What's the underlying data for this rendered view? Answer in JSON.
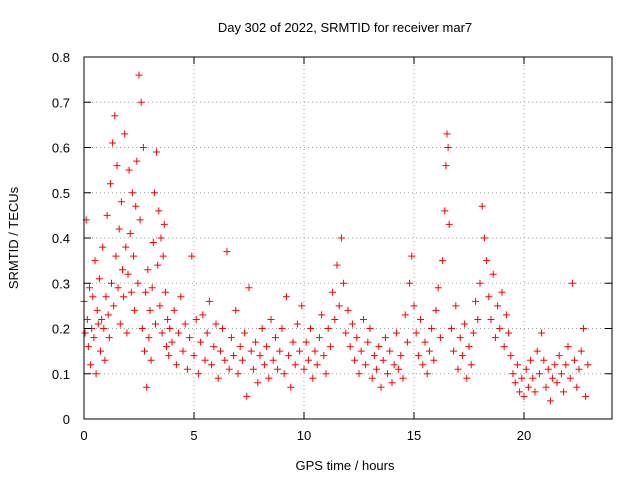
{
  "colors": {
    "series": "#ff0000",
    "frame": "#000000",
    "grid": "#a0a0a0",
    "background": "#ffffff"
  },
  "chart_data": {
    "type": "scatter",
    "title": "Day 302 of 2022, SRMTID for receiver mar7",
    "xlabel": "GPS time / hours",
    "ylabel": "SRMTID / TECUs",
    "xlim": [
      0,
      24
    ],
    "ylim": [
      0,
      0.8
    ],
    "xticks": [
      0,
      5,
      10,
      15,
      20
    ],
    "yticks": [
      0,
      0.1,
      0.2,
      0.3,
      0.4,
      0.5,
      0.6,
      0.7,
      0.8
    ],
    "grid": true,
    "marker": "plus",
    "series": [
      {
        "name": "SRMTID",
        "points": [
          [
            0.0,
            0.26
          ],
          [
            0.05,
            0.19
          ],
          [
            0.1,
            0.44
          ],
          [
            0.15,
            0.22
          ],
          [
            0.2,
            0.16
          ],
          [
            0.25,
            0.29
          ],
          [
            0.3,
            0.12
          ],
          [
            0.35,
            0.2
          ],
          [
            0.4,
            0.27
          ],
          [
            0.45,
            0.18
          ],
          [
            0.5,
            0.35
          ],
          [
            0.55,
            0.1
          ],
          [
            0.6,
            0.24
          ],
          [
            0.65,
            0.21
          ],
          [
            0.7,
            0.31
          ],
          [
            0.75,
            0.15
          ],
          [
            0.8,
            0.22
          ],
          [
            0.85,
            0.38
          ],
          [
            0.9,
            0.2
          ],
          [
            0.95,
            0.13
          ],
          [
            1.0,
            0.27
          ],
          [
            1.05,
            0.45
          ],
          [
            1.1,
            0.23
          ],
          [
            1.15,
            0.18
          ],
          [
            1.2,
            0.52
          ],
          [
            1.25,
            0.3
          ],
          [
            1.3,
            0.61
          ],
          [
            1.35,
            0.25
          ],
          [
            1.4,
            0.67
          ],
          [
            1.45,
            0.36
          ],
          [
            1.5,
            0.56
          ],
          [
            1.55,
            0.29
          ],
          [
            1.6,
            0.42
          ],
          [
            1.65,
            0.21
          ],
          [
            1.7,
            0.48
          ],
          [
            1.75,
            0.33
          ],
          [
            1.8,
            0.27
          ],
          [
            1.85,
            0.63
          ],
          [
            1.9,
            0.38
          ],
          [
            1.95,
            0.19
          ],
          [
            2.0,
            0.32
          ],
          [
            2.05,
            0.55
          ],
          [
            2.1,
            0.41
          ],
          [
            2.15,
            0.28
          ],
          [
            2.2,
            0.5
          ],
          [
            2.25,
            0.36
          ],
          [
            2.3,
            0.24
          ],
          [
            2.35,
            0.47
          ],
          [
            2.4,
            0.57
          ],
          [
            2.45,
            0.3
          ],
          [
            2.5,
            0.76
          ],
          [
            2.55,
            0.44
          ],
          [
            2.6,
            0.7
          ],
          [
            2.65,
            0.2
          ],
          [
            2.7,
            0.6
          ],
          [
            2.75,
            0.15
          ],
          [
            2.8,
            0.28
          ],
          [
            2.85,
            0.07
          ],
          [
            2.9,
            0.33
          ],
          [
            2.95,
            0.18
          ],
          [
            3.0,
            0.24
          ],
          [
            3.05,
            0.13
          ],
          [
            3.1,
            0.29
          ],
          [
            3.15,
            0.39
          ],
          [
            3.2,
            0.5
          ],
          [
            3.25,
            0.21
          ],
          [
            3.3,
            0.59
          ],
          [
            3.35,
            0.34
          ],
          [
            3.4,
            0.46
          ],
          [
            3.45,
            0.25
          ],
          [
            3.5,
            0.4
          ],
          [
            3.55,
            0.19
          ],
          [
            3.6,
            0.36
          ],
          [
            3.65,
            0.43
          ],
          [
            3.7,
            0.28
          ],
          [
            3.75,
            0.16
          ],
          [
            3.8,
            0.22
          ],
          [
            3.85,
            0.14
          ],
          [
            3.9,
            0.2
          ],
          [
            4.0,
            0.17
          ],
          [
            4.1,
            0.24
          ],
          [
            4.2,
            0.12
          ],
          [
            4.3,
            0.19
          ],
          [
            4.4,
            0.27
          ],
          [
            4.5,
            0.15
          ],
          [
            4.6,
            0.21
          ],
          [
            4.7,
            0.11
          ],
          [
            4.8,
            0.18
          ],
          [
            4.9,
            0.36
          ],
          [
            5.0,
            0.14
          ],
          [
            5.1,
            0.22
          ],
          [
            5.2,
            0.1
          ],
          [
            5.3,
            0.17
          ],
          [
            5.4,
            0.23
          ],
          [
            5.5,
            0.13
          ],
          [
            5.6,
            0.19
          ],
          [
            5.7,
            0.26
          ],
          [
            5.8,
            0.12
          ],
          [
            5.9,
            0.16
          ],
          [
            6.0,
            0.21
          ],
          [
            6.1,
            0.09
          ],
          [
            6.2,
            0.15
          ],
          [
            6.3,
            0.2
          ],
          [
            6.4,
            0.13
          ],
          [
            6.5,
            0.37
          ],
          [
            6.6,
            0.11
          ],
          [
            6.7,
            0.18
          ],
          [
            6.8,
            0.14
          ],
          [
            6.9,
            0.24
          ],
          [
            7.0,
            0.1
          ],
          [
            7.1,
            0.16
          ],
          [
            7.2,
            0.13
          ],
          [
            7.3,
            0.19
          ],
          [
            7.4,
            0.05
          ],
          [
            7.5,
            0.29
          ],
          [
            7.6,
            0.15
          ],
          [
            7.7,
            0.11
          ],
          [
            7.8,
            0.17
          ],
          [
            7.9,
            0.08
          ],
          [
            8.0,
            0.14
          ],
          [
            8.1,
            0.2
          ],
          [
            8.2,
            0.12
          ],
          [
            8.3,
            0.16
          ],
          [
            8.4,
            0.09
          ],
          [
            8.5,
            0.22
          ],
          [
            8.6,
            0.13
          ],
          [
            8.7,
            0.18
          ],
          [
            8.8,
            0.11
          ],
          [
            8.9,
            0.15
          ],
          [
            9.0,
            0.2
          ],
          [
            9.1,
            0.1
          ],
          [
            9.2,
            0.27
          ],
          [
            9.3,
            0.14
          ],
          [
            9.4,
            0.07
          ],
          [
            9.5,
            0.17
          ],
          [
            9.6,
            0.12
          ],
          [
            9.7,
            0.21
          ],
          [
            9.8,
            0.15
          ],
          [
            9.9,
            0.25
          ],
          [
            10.0,
            0.11
          ],
          [
            10.1,
            0.17
          ],
          [
            10.2,
            0.13
          ],
          [
            10.3,
            0.2
          ],
          [
            10.4,
            0.09
          ],
          [
            10.5,
            0.15
          ],
          [
            10.6,
            0.12
          ],
          [
            10.7,
            0.18
          ],
          [
            10.8,
            0.23
          ],
          [
            10.9,
            0.14
          ],
          [
            11.0,
            0.1
          ],
          [
            11.1,
            0.2
          ],
          [
            11.2,
            0.16
          ],
          [
            11.3,
            0.28
          ],
          [
            11.4,
            0.22
          ],
          [
            11.5,
            0.34
          ],
          [
            11.6,
            0.25
          ],
          [
            11.7,
            0.4
          ],
          [
            11.8,
            0.3
          ],
          [
            11.9,
            0.19
          ],
          [
            12.0,
            0.24
          ],
          [
            12.1,
            0.16
          ],
          [
            12.2,
            0.21
          ],
          [
            12.3,
            0.13
          ],
          [
            12.4,
            0.18
          ],
          [
            12.5,
            0.1
          ],
          [
            12.6,
            0.15
          ],
          [
            12.7,
            0.22
          ],
          [
            12.8,
            0.12
          ],
          [
            12.9,
            0.17
          ],
          [
            13.0,
            0.2
          ],
          [
            13.1,
            0.09
          ],
          [
            13.2,
            0.14
          ],
          [
            13.3,
            0.11
          ],
          [
            13.4,
            0.16
          ],
          [
            13.5,
            0.07
          ],
          [
            13.6,
            0.13
          ],
          [
            13.7,
            0.18
          ],
          [
            13.8,
            0.1
          ],
          [
            13.9,
            0.15
          ],
          [
            14.0,
            0.08
          ],
          [
            14.1,
            0.12
          ],
          [
            14.2,
            0.19
          ],
          [
            14.3,
            0.11
          ],
          [
            14.4,
            0.14
          ],
          [
            14.5,
            0.09
          ],
          [
            14.6,
            0.23
          ],
          [
            14.7,
            0.17
          ],
          [
            14.8,
            0.3
          ],
          [
            14.9,
            0.36
          ],
          [
            15.0,
            0.25
          ],
          [
            15.1,
            0.19
          ],
          [
            15.2,
            0.14
          ],
          [
            15.3,
            0.22
          ],
          [
            15.4,
            0.12
          ],
          [
            15.5,
            0.17
          ],
          [
            15.6,
            0.1
          ],
          [
            15.7,
            0.15
          ],
          [
            15.8,
            0.2
          ],
          [
            15.9,
            0.13
          ],
          [
            16.0,
            0.24
          ],
          [
            16.1,
            0.29
          ],
          [
            16.2,
            0.18
          ],
          [
            16.3,
            0.35
          ],
          [
            16.4,
            0.46
          ],
          [
            16.45,
            0.56
          ],
          [
            16.5,
            0.63
          ],
          [
            16.55,
            0.6
          ],
          [
            16.6,
            0.43
          ],
          [
            16.7,
            0.2
          ],
          [
            16.8,
            0.15
          ],
          [
            16.9,
            0.25
          ],
          [
            17.0,
            0.11
          ],
          [
            17.1,
            0.18
          ],
          [
            17.2,
            0.14
          ],
          [
            17.3,
            0.21
          ],
          [
            17.4,
            0.09
          ],
          [
            17.5,
            0.16
          ],
          [
            17.6,
            0.12
          ],
          [
            17.7,
            0.19
          ],
          [
            17.8,
            0.26
          ],
          [
            17.9,
            0.22
          ],
          [
            18.0,
            0.3
          ],
          [
            18.1,
            0.47
          ],
          [
            18.2,
            0.4
          ],
          [
            18.3,
            0.35
          ],
          [
            18.4,
            0.27
          ],
          [
            18.5,
            0.22
          ],
          [
            18.6,
            0.32
          ],
          [
            18.7,
            0.18
          ],
          [
            18.8,
            0.25
          ],
          [
            18.9,
            0.2
          ],
          [
            19.0,
            0.28
          ],
          [
            19.1,
            0.16
          ],
          [
            19.2,
            0.23
          ],
          [
            19.3,
            0.19
          ],
          [
            19.4,
            0.14
          ],
          [
            19.5,
            0.1
          ],
          [
            19.6,
            0.08
          ],
          [
            19.7,
            0.12
          ],
          [
            19.8,
            0.06
          ],
          [
            19.9,
            0.09
          ],
          [
            20.0,
            0.05
          ],
          [
            20.1,
            0.11
          ],
          [
            20.2,
            0.07
          ],
          [
            20.3,
            0.13
          ],
          [
            20.4,
            0.09
          ],
          [
            20.5,
            0.06
          ],
          [
            20.6,
            0.15
          ],
          [
            20.7,
            0.1
          ],
          [
            20.8,
            0.19
          ],
          [
            20.9,
            0.13
          ],
          [
            21.0,
            0.07
          ],
          [
            21.1,
            0.11
          ],
          [
            21.2,
            0.04
          ],
          [
            21.3,
            0.09
          ],
          [
            21.4,
            0.12
          ],
          [
            21.5,
            0.08
          ],
          [
            21.6,
            0.14
          ],
          [
            21.7,
            0.1
          ],
          [
            21.8,
            0.06
          ],
          [
            21.9,
            0.12
          ],
          [
            22.0,
            0.16
          ],
          [
            22.1,
            0.09
          ],
          [
            22.2,
            0.3
          ],
          [
            22.3,
            0.13
          ],
          [
            22.4,
            0.07
          ],
          [
            22.5,
            0.11
          ],
          [
            22.6,
            0.15
          ],
          [
            22.7,
            0.2
          ],
          [
            22.8,
            0.05
          ],
          [
            22.9,
            0.12
          ]
        ]
      }
    ]
  }
}
